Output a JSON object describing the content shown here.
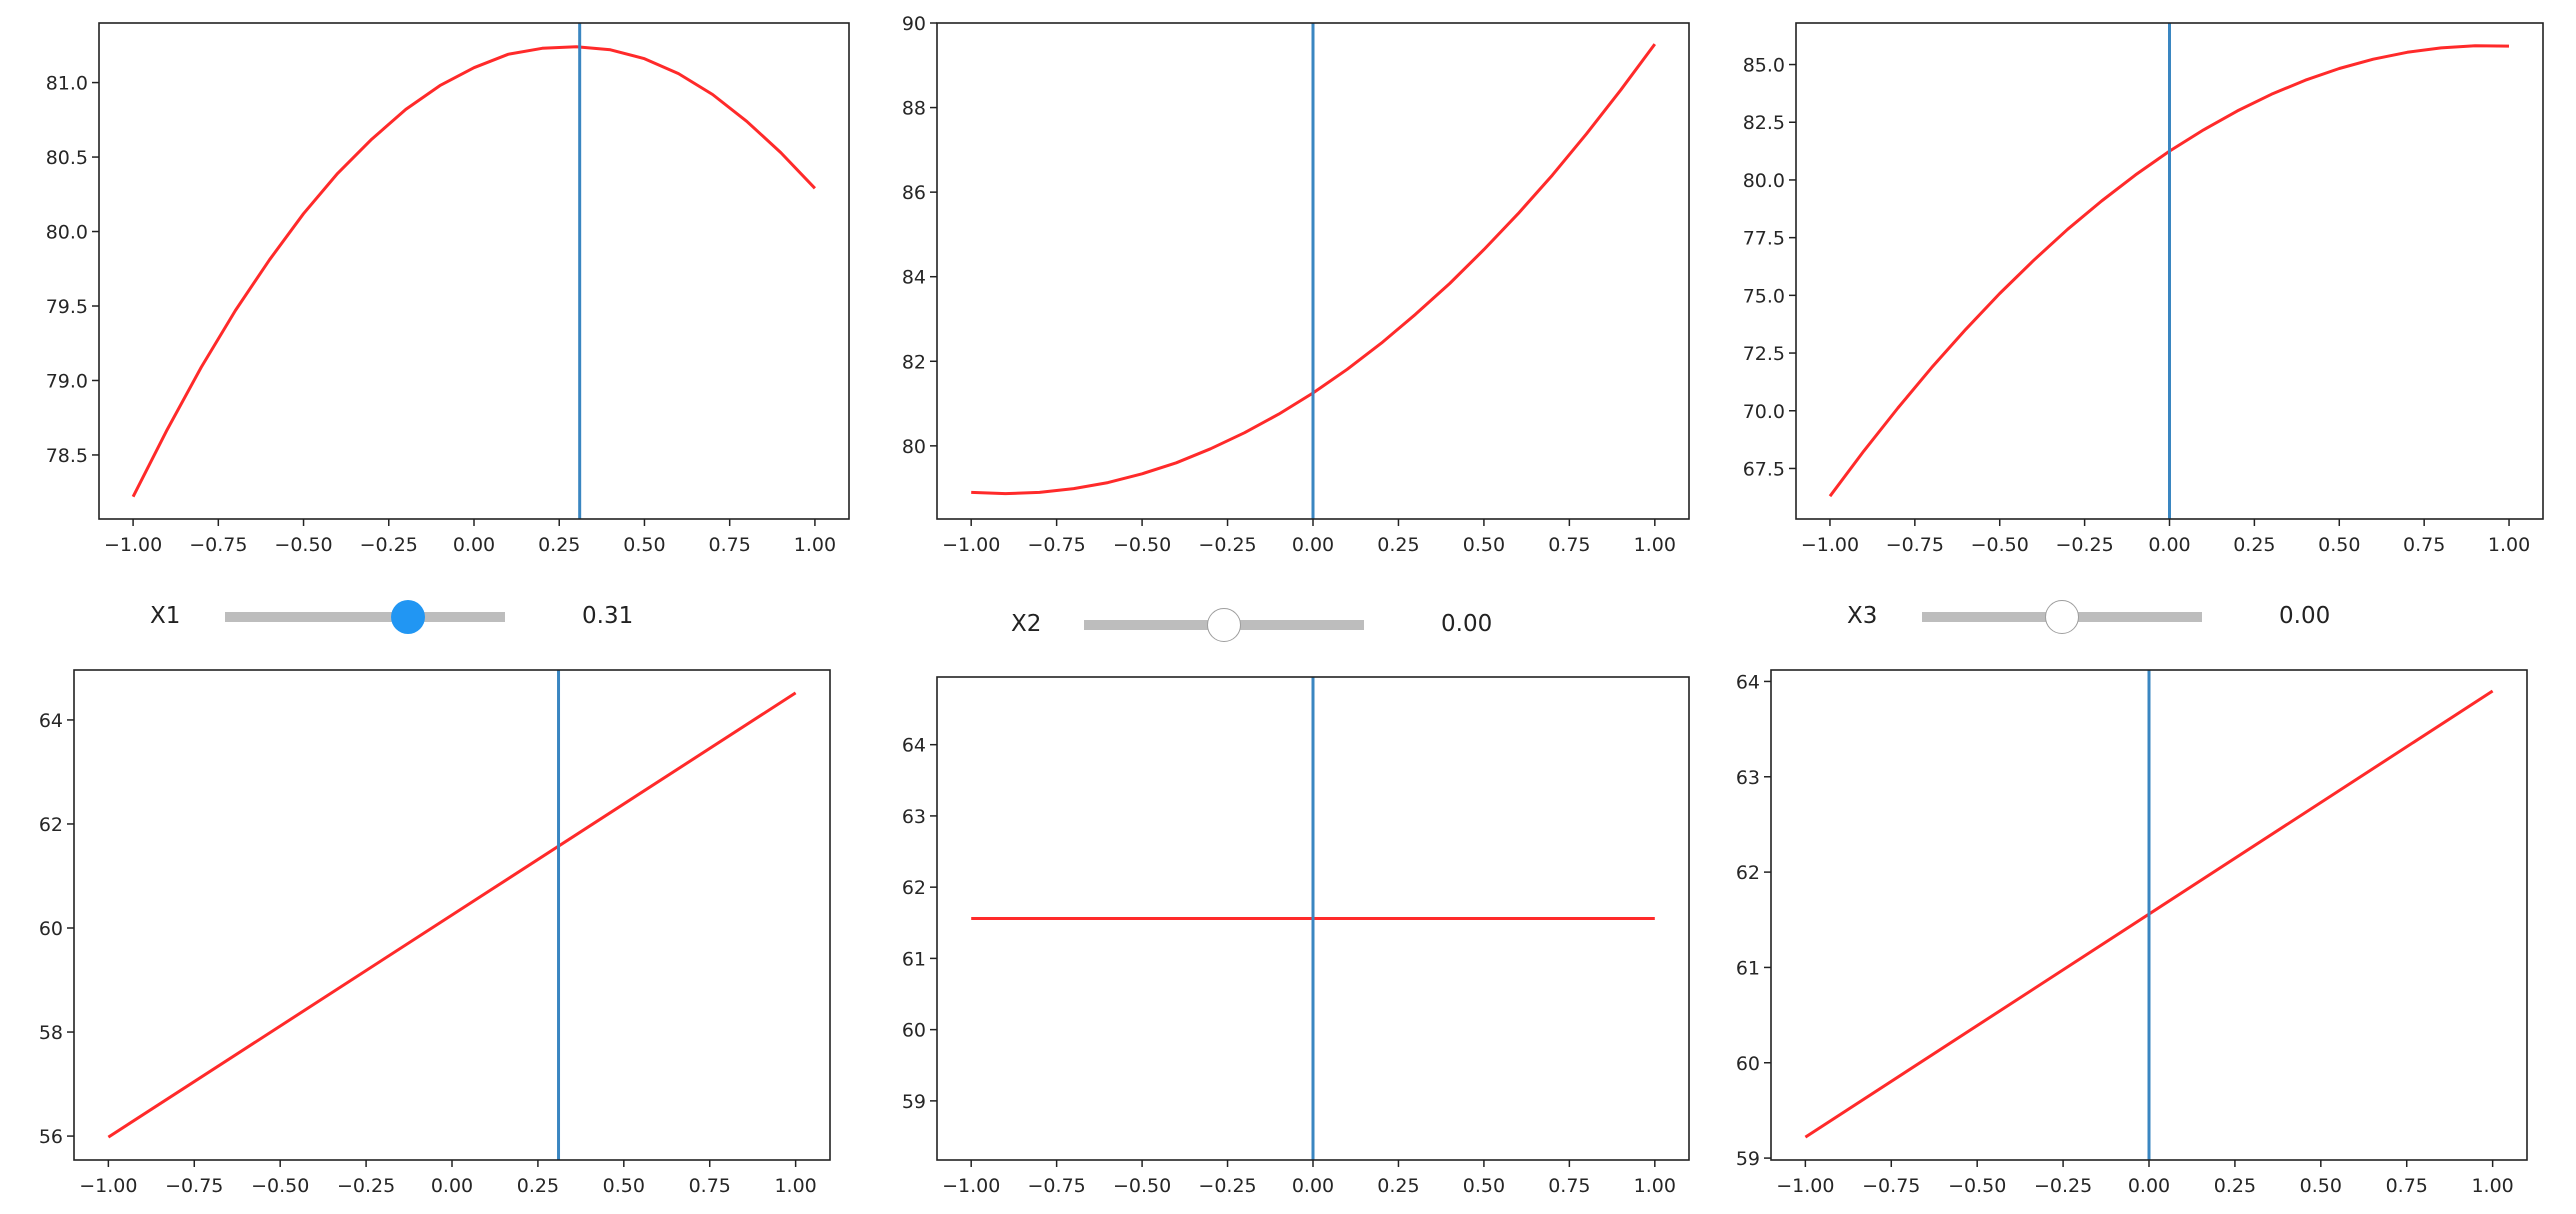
{
  "colors": {
    "curve": "#ff2a2a",
    "marker_line": "#3a86c1",
    "slider_active": "#2196f3",
    "slider_track": "#bdbdbd"
  },
  "sliders": [
    {
      "label": "X1",
      "value": 0.31,
      "value_text": "0.31",
      "min": -1,
      "max": 1,
      "active": true
    },
    {
      "label": "X2",
      "value": 0.0,
      "value_text": "0.00",
      "min": -1,
      "max": 1,
      "active": false
    },
    {
      "label": "X3",
      "value": 0.0,
      "value_text": "0.00",
      "min": -1,
      "max": 1,
      "active": false
    }
  ],
  "chart_data": [
    {
      "type": "line",
      "xlim": [
        -1.1,
        1.1
      ],
      "ylim": [
        78.07,
        81.4
      ],
      "vline_x": 0.31,
      "xticks": [
        -1,
        -0.75,
        -0.5,
        -0.25,
        0,
        0.25,
        0.5,
        0.75,
        1
      ],
      "xtick_labels": [
        "−1.00",
        "−0.75",
        "−0.50",
        "−0.25",
        "0.00",
        "0.25",
        "0.50",
        "0.75",
        "1.00"
      ],
      "yticks": [
        78.5,
        79,
        79.5,
        80,
        80.5,
        81
      ],
      "ytick_labels": [
        "78.5",
        "79.0",
        "79.5",
        "80.0",
        "80.5",
        "81.0"
      ],
      "x": [
        -1,
        -0.9,
        -0.8,
        -0.7,
        -0.6,
        -0.5,
        -0.4,
        -0.3,
        -0.2,
        -0.1,
        0,
        0.1,
        0.2,
        0.3,
        0.4,
        0.5,
        0.6,
        0.7,
        0.8,
        0.9,
        1
      ],
      "y": [
        78.22,
        78.67,
        79.09,
        79.47,
        79.81,
        80.12,
        80.39,
        80.62,
        80.82,
        80.98,
        81.1,
        81.19,
        81.23,
        81.24,
        81.22,
        81.16,
        81.06,
        80.92,
        80.74,
        80.53,
        80.29
      ]
    },
    {
      "type": "line",
      "xlim": [
        -1.1,
        1.1
      ],
      "ylim": [
        78.27,
        90.0
      ],
      "vline_x": 0.0,
      "xticks": [
        -1,
        -0.75,
        -0.5,
        -0.25,
        0,
        0.25,
        0.5,
        0.75,
        1
      ],
      "xtick_labels": [
        "−1.00",
        "−0.75",
        "−0.50",
        "−0.25",
        "0.00",
        "0.25",
        "0.50",
        "0.75",
        "1.00"
      ],
      "yticks": [
        80,
        82,
        84,
        86,
        88,
        90
      ],
      "ytick_labels": [
        "80",
        "82",
        "84",
        "86",
        "88",
        "90"
      ],
      "x": [
        -1,
        -0.9,
        -0.8,
        -0.7,
        -0.6,
        -0.5,
        -0.4,
        -0.3,
        -0.2,
        -0.1,
        0,
        0.1,
        0.2,
        0.3,
        0.4,
        0.5,
        0.6,
        0.7,
        0.8,
        0.9,
        1
      ],
      "y": [
        78.9,
        78.87,
        78.9,
        78.99,
        79.13,
        79.34,
        79.6,
        79.93,
        80.31,
        80.75,
        81.25,
        81.81,
        82.43,
        83.11,
        83.84,
        84.64,
        85.49,
        86.4,
        87.38,
        88.41,
        89.5
      ]
    },
    {
      "type": "line",
      "xlim": [
        -1.1,
        1.1
      ],
      "ylim": [
        65.31,
        86.8
      ],
      "vline_x": 0.0,
      "xticks": [
        -1,
        -0.75,
        -0.5,
        -0.25,
        0,
        0.25,
        0.5,
        0.75,
        1
      ],
      "xtick_labels": [
        "−1.00",
        "−0.75",
        "−0.50",
        "−0.25",
        "0.00",
        "0.25",
        "0.50",
        "0.75",
        "1.00"
      ],
      "yticks": [
        67.5,
        70,
        72.5,
        75,
        77.5,
        80,
        82.5,
        85
      ],
      "ytick_labels": [
        "67.5",
        "70.0",
        "72.5",
        "75.0",
        "77.5",
        "80.0",
        "82.5",
        "85.0"
      ],
      "x": [
        -1,
        -0.9,
        -0.8,
        -0.7,
        -0.6,
        -0.5,
        -0.4,
        -0.3,
        -0.2,
        -0.1,
        0,
        0.1,
        0.2,
        0.3,
        0.4,
        0.5,
        0.6,
        0.7,
        0.8,
        0.9,
        1
      ],
      "y": [
        66.3,
        68.26,
        70.12,
        71.88,
        73.53,
        75.08,
        76.52,
        77.86,
        79.09,
        80.22,
        81.25,
        82.17,
        82.99,
        83.71,
        84.32,
        84.83,
        85.23,
        85.53,
        85.72,
        85.81,
        85.8
      ]
    },
    {
      "type": "line",
      "xlim": [
        -1.1,
        1.1
      ],
      "ylim": [
        55.54,
        64.96
      ],
      "vline_x": 0.31,
      "xticks": [
        -1,
        -0.75,
        -0.5,
        -0.25,
        0,
        0.25,
        0.5,
        0.75,
        1
      ],
      "xtick_labels": [
        "−1.00",
        "−0.75",
        "−0.50",
        "−0.25",
        "0.00",
        "0.25",
        "0.50",
        "0.75",
        "1.00"
      ],
      "yticks": [
        56,
        58,
        60,
        62,
        64
      ],
      "ytick_labels": [
        "56",
        "58",
        "60",
        "62",
        "64"
      ],
      "x": [
        -1,
        1
      ],
      "y": [
        55.98,
        64.52
      ]
    },
    {
      "type": "line",
      "xlim": [
        -1.1,
        1.1
      ],
      "ylim": [
        58.17,
        64.95
      ],
      "vline_x": 0.0,
      "xticks": [
        -1,
        -0.75,
        -0.5,
        -0.25,
        0,
        0.25,
        0.5,
        0.75,
        1
      ],
      "xtick_labels": [
        "−1.00",
        "−0.75",
        "−0.50",
        "−0.25",
        "0.00",
        "0.25",
        "0.50",
        "0.75",
        "1.00"
      ],
      "yticks": [
        59,
        60,
        61,
        62,
        63,
        64
      ],
      "ytick_labels": [
        "59",
        "60",
        "61",
        "62",
        "63",
        "64"
      ],
      "x": [
        -1,
        1
      ],
      "y": [
        61.56,
        61.56
      ]
    },
    {
      "type": "line",
      "xlim": [
        -1.1,
        1.1
      ],
      "ylim": [
        58.98,
        64.12
      ],
      "vline_x": 0.0,
      "xticks": [
        -1,
        -0.75,
        -0.5,
        -0.25,
        0,
        0.25,
        0.5,
        0.75,
        1
      ],
      "xtick_labels": [
        "−1.00",
        "−0.75",
        "−0.50",
        "−0.25",
        "0.00",
        "0.25",
        "0.50",
        "0.75",
        "1.00"
      ],
      "yticks": [
        59,
        60,
        61,
        62,
        63,
        64
      ],
      "ytick_labels": [
        "59",
        "60",
        "61",
        "62",
        "63",
        "64"
      ],
      "x": [
        -1,
        1
      ],
      "y": [
        59.22,
        63.9
      ]
    }
  ]
}
